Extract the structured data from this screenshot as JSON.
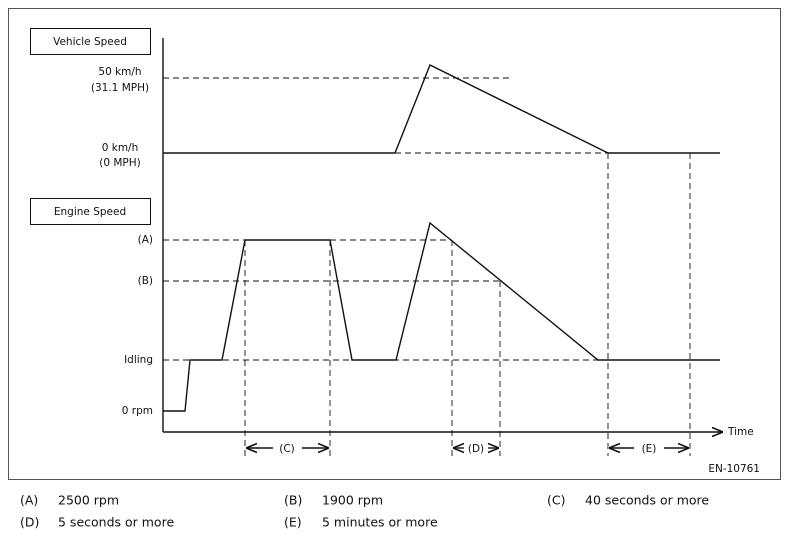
{
  "diagram": {
    "vehicle_speed_label": "Vehicle Speed",
    "engine_speed_label": "Engine Speed",
    "axis_labels": {
      "speed_50": "50 km/h",
      "speed_50_mph": "(31.1 MPH)",
      "speed_0": "0 km/h",
      "speed_0_mph": "(0 MPH)",
      "a": "(A)",
      "b": "(B)",
      "idling": "Idling",
      "rpm_0": "0 rpm",
      "time": "Time"
    },
    "intervals": {
      "c": "(C)",
      "d": "(D)",
      "e": "(E)"
    },
    "figure_id": "EN-10761"
  },
  "legend": [
    {
      "key": "(A)",
      "text": "2500 rpm"
    },
    {
      "key": "(B)",
      "text": "1900 rpm"
    },
    {
      "key": "(C)",
      "text": "40 seconds or more"
    },
    {
      "key": "(D)",
      "text": "5 seconds or more"
    },
    {
      "key": "(E)",
      "text": "5 minutes or more"
    }
  ]
}
